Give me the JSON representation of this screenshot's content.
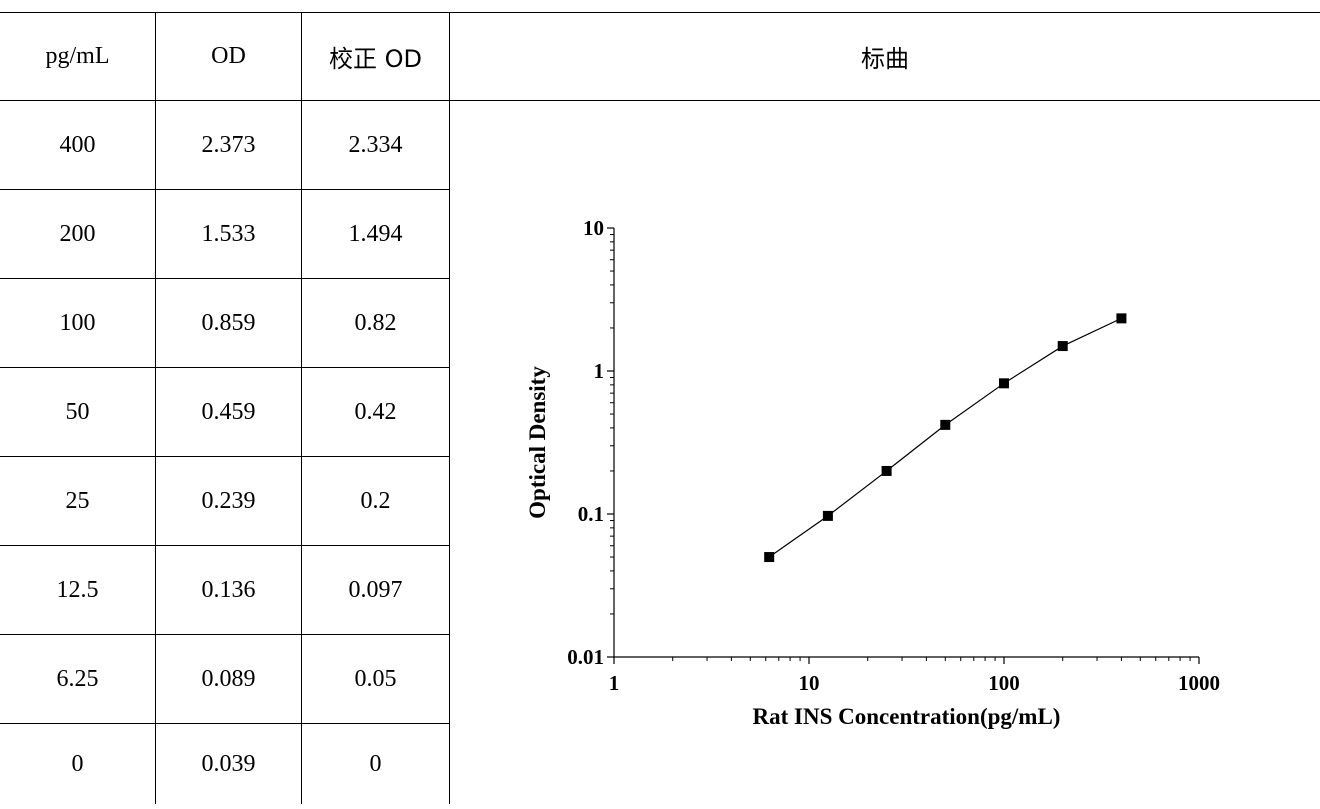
{
  "table": {
    "headers": [
      "pg/mL",
      "OD",
      "校正 OD"
    ],
    "rows": [
      [
        "400",
        "2.373",
        "2.334"
      ],
      [
        "200",
        "1.533",
        "1.494"
      ],
      [
        "100",
        "0.859",
        "0.82"
      ],
      [
        "50",
        "0.459",
        "0.42"
      ],
      [
        "25",
        "0.239",
        "0.2"
      ],
      [
        "12.5",
        "0.136",
        "0.097"
      ],
      [
        "6.25",
        "0.089",
        "0.05"
      ],
      [
        "0",
        "0.039",
        "0"
      ]
    ]
  },
  "chart_header": "标曲",
  "chart_data": {
    "type": "line",
    "title": "",
    "xlabel": "Rat INS Concentration(pg/mL)",
    "ylabel": "Optical Density",
    "x_scale": "log",
    "y_scale": "log",
    "xlim": [
      1,
      1000
    ],
    "ylim": [
      0.01,
      10
    ],
    "x_ticks": [
      "1",
      "10",
      "100",
      "1000"
    ],
    "y_ticks": [
      "0.01",
      "0.1",
      "1",
      "10"
    ],
    "grid": false,
    "series": [
      {
        "marker": "square",
        "x": [
          6.25,
          12.5,
          25,
          50,
          100,
          200,
          400
        ],
        "y": [
          0.05,
          0.097,
          0.2,
          0.42,
          0.82,
          1.494,
          2.334
        ]
      }
    ]
  }
}
